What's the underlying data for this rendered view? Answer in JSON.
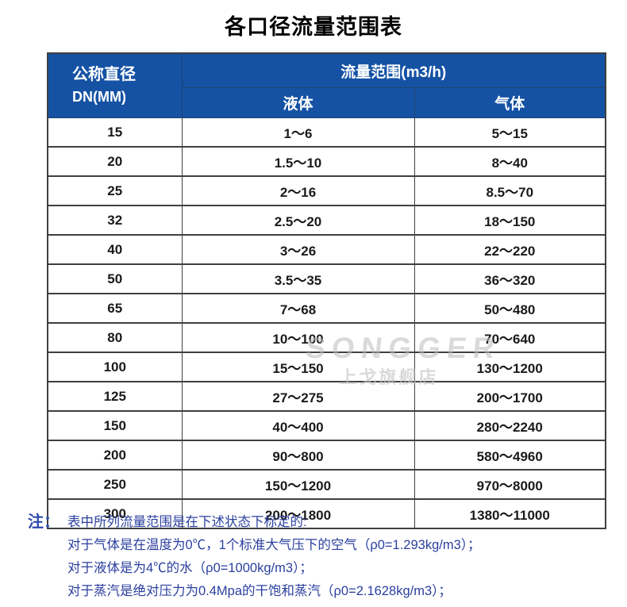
{
  "page": {
    "title": "各口径流量范围表"
  },
  "table": {
    "header": {
      "diameter_line1": "公称直径",
      "diameter_line2": "DN(MM)",
      "flow_range": "流量范围(m3/h)",
      "liquid": "液体",
      "gas": "气体"
    },
    "rows": [
      {
        "dn": "15",
        "liquid": "1～6",
        "gas": "5～15"
      },
      {
        "dn": "20",
        "liquid": "1.5～10",
        "gas": "8～40"
      },
      {
        "dn": "25",
        "liquid": "2～16",
        "gas": "8.5～70"
      },
      {
        "dn": "32",
        "liquid": "2.5～20",
        "gas": "18～150"
      },
      {
        "dn": "40",
        "liquid": "3～26",
        "gas": "22～220"
      },
      {
        "dn": "50",
        "liquid": "3.5～35",
        "gas": "36～320"
      },
      {
        "dn": "65",
        "liquid": "7～68",
        "gas": "50～480"
      },
      {
        "dn": "80",
        "liquid": "10～100",
        "gas": "70～640"
      },
      {
        "dn": "100",
        "liquid": "15～150",
        "gas": "130～1200"
      },
      {
        "dn": "125",
        "liquid": "27～275",
        "gas": "200～1700"
      },
      {
        "dn": "150",
        "liquid": "40～400",
        "gas": "280～2240"
      },
      {
        "dn": "200",
        "liquid": "90～800",
        "gas": "580～4960"
      },
      {
        "dn": "250",
        "liquid": "150～1200",
        "gas": "970～8000"
      },
      {
        "dn": "300",
        "liquid": "200～1800",
        "gas": "1380～11000"
      }
    ]
  },
  "watermark": {
    "brand": "SONGGER",
    "store": "上戈旗舰店"
  },
  "notes": {
    "label": "注：",
    "lines": [
      "表中所列流量范围是在下述状态下标定的:",
      "对于气体是在温度为0℃，1个标准大气压下的空气（ρ0=1.293kg/m3）；",
      "对于液体是为4℃的水（ρ0=1000kg/m3）；",
      "对于蒸汽是绝对压力为0.4Mpa的干饱和蒸汽（ρ0=2.1628kg/m3）；"
    ]
  },
  "colors": {
    "header_bg": "#1552a4",
    "header_text": "#ffffff",
    "note_text": "#2b3f9f",
    "border": "#404040",
    "watermark": "#c4c4c4"
  }
}
